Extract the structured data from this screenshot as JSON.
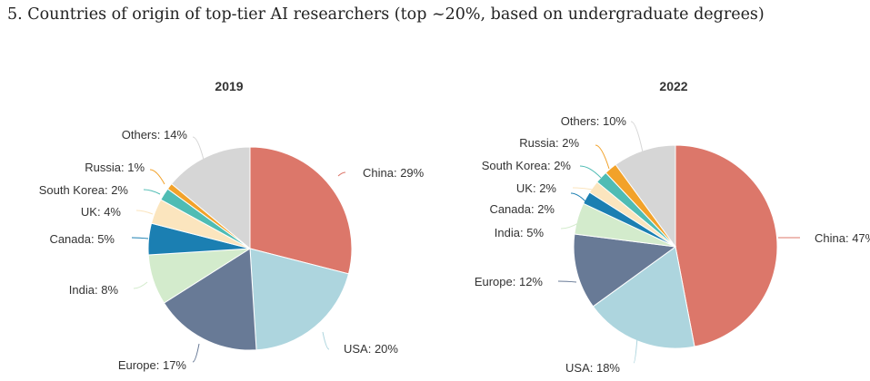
{
  "page": {
    "heading": "5. Countries of origin of top-tier AI researchers (top ~20%, based on undergraduate degrees)"
  },
  "colors": {
    "China": "#dc776a",
    "USA": "#add5de",
    "Europe": "#687a96",
    "India": "#d3ebcc",
    "Canada": "#1b7fb2",
    "UK": "#fbe5be",
    "South Korea": "#4fbcb4",
    "Russia": "#f2a22a",
    "Others": "#d6d6d6"
  },
  "chart_data": [
    {
      "type": "pie",
      "title": "2019",
      "categories": [
        "China",
        "USA",
        "Europe",
        "India",
        "Canada",
        "UK",
        "South Korea",
        "Russia",
        "Others"
      ],
      "values": [
        29,
        20,
        17,
        8,
        5,
        4,
        2,
        1,
        14
      ],
      "labels": [
        "China: 29%",
        "USA: 20%",
        "Europe: 17%",
        "India: 8%",
        "Canada: 5%",
        "UK: 4%",
        "South Korea: 2%",
        "Russia: 1%",
        "Others: 14%"
      ]
    },
    {
      "type": "pie",
      "title": "2022",
      "categories": [
        "China",
        "USA",
        "Europe",
        "India",
        "Canada",
        "UK",
        "South Korea",
        "Russia",
        "Others"
      ],
      "values": [
        47,
        18,
        12,
        5,
        2,
        2,
        2,
        2,
        10
      ],
      "labels": [
        "China: 47%",
        "USA: 18%",
        "Europe: 12%",
        "India: 5%",
        "Canada: 2%",
        "UK: 2%",
        "South Korea: 2%",
        "Russia: 2%",
        "Others: 10%"
      ]
    }
  ]
}
